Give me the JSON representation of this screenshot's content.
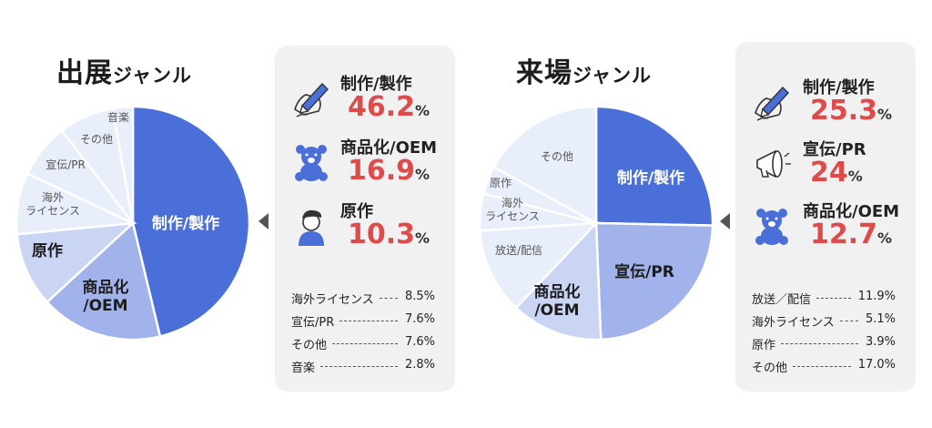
{
  "chart_data": [
    {
      "type": "pie",
      "title": "出展",
      "title_suffix": "ジャンル",
      "slices": [
        {
          "label": "制作/製作",
          "value": 46.2,
          "color": "#4a6fd8",
          "text_color": "#ffffff"
        },
        {
          "label": "商品化\n/OEM",
          "value": 16.9,
          "color": "#a1b3ea",
          "text_color": "#1c1c1c"
        },
        {
          "label": "原作",
          "value": 10.3,
          "color": "#cad5f4",
          "text_color": "#1c1c1c"
        },
        {
          "label": "海外\nライセンス",
          "value": 8.5,
          "color": "#e9eefb",
          "text_color": "#555555"
        },
        {
          "label": "宣伝/PR",
          "value": 7.6,
          "color": "#e9eefb",
          "text_color": "#555555"
        },
        {
          "label": "その他",
          "value": 7.6,
          "color": "#e9eefb",
          "text_color": "#555555"
        },
        {
          "label": "音楽",
          "value": 2.8,
          "color": "#e9eefb",
          "text_color": "#555555"
        }
      ],
      "featured": [
        {
          "label": "制作/製作",
          "value": "46.2",
          "unit": "%",
          "icon": "pen-hand-icon"
        },
        {
          "label": "商品化/OEM",
          "value": "16.9",
          "unit": "%",
          "icon": "teddy-bear-icon"
        },
        {
          "label": "原作",
          "value": "10.3",
          "unit": "%",
          "icon": "author-person-icon"
        }
      ],
      "minor": [
        {
          "label": "海外ライセンス",
          "value": "8.5%"
        },
        {
          "label": "宣伝/PR",
          "value": "7.6%"
        },
        {
          "label": "その他",
          "value": "7.6%"
        },
        {
          "label": "音楽",
          "value": "2.8%"
        }
      ]
    },
    {
      "type": "pie",
      "title": "来場",
      "title_suffix": "ジャンル",
      "slices": [
        {
          "label": "制作/製作",
          "value": 25.3,
          "color": "#4a6fd8",
          "text_color": "#ffffff"
        },
        {
          "label": "宣伝/PR",
          "value": 24.0,
          "color": "#a1b3ea",
          "text_color": "#1c1c1c"
        },
        {
          "label": "商品化\n/OEM",
          "value": 12.7,
          "color": "#cad5f4",
          "text_color": "#1c1c1c"
        },
        {
          "label": "放送/配信",
          "value": 11.9,
          "color": "#e9eefb",
          "text_color": "#555555"
        },
        {
          "label": "海外\nライセンス",
          "value": 5.1,
          "color": "#e9eefb",
          "text_color": "#555555"
        },
        {
          "label": "原作",
          "value": 3.9,
          "color": "#e9eefb",
          "text_color": "#555555"
        },
        {
          "label": "その他",
          "value": 17.0,
          "color": "#e9eefb",
          "text_color": "#555555"
        }
      ],
      "featured": [
        {
          "label": "制作/製作",
          "value": "25.3",
          "unit": "%",
          "icon": "pen-hand-icon"
        },
        {
          "label": "宣伝/PR",
          "value": "24",
          "unit": "%",
          "icon": "megaphone-icon"
        },
        {
          "label": "商品化/OEM",
          "value": "12.7",
          "unit": "%",
          "icon": "teddy-bear-icon"
        }
      ],
      "minor": [
        {
          "label": "放送／配信",
          "value": "11.9%"
        },
        {
          "label": "海外ライセンス",
          "value": "5.1%"
        },
        {
          "label": "原作",
          "value": "3.9%"
        },
        {
          "label": "その他",
          "value": "17.0%"
        }
      ]
    }
  ]
}
